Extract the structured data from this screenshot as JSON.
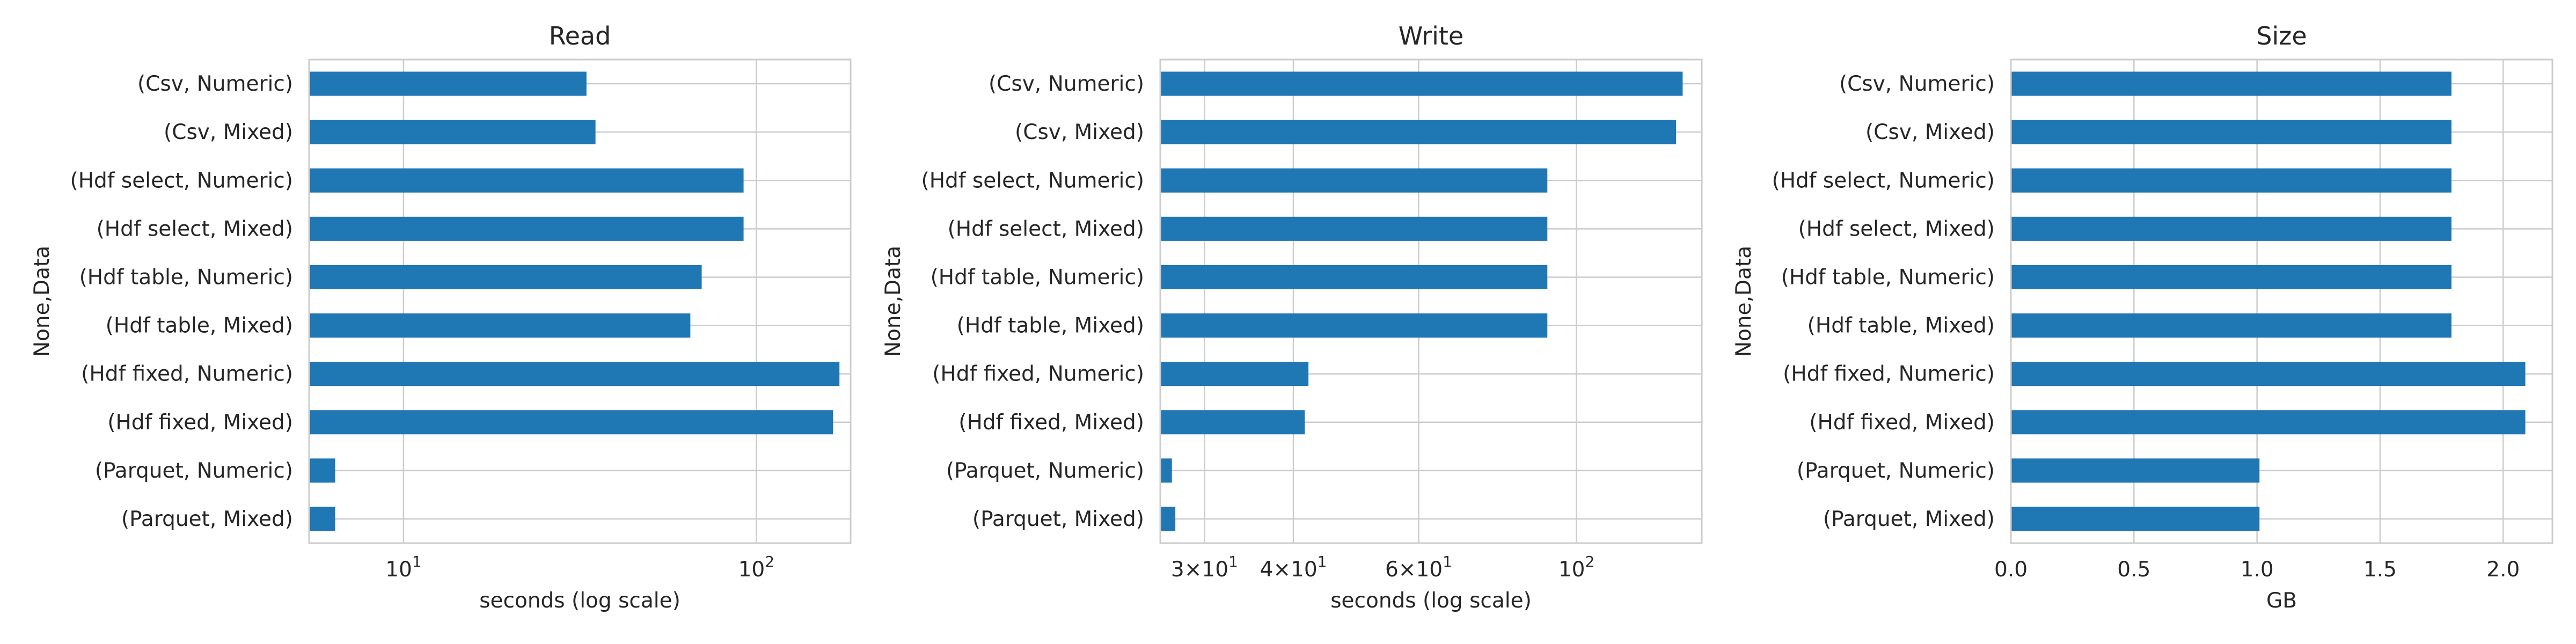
{
  "chart_data": [
    {
      "type": "bar",
      "orientation": "horizontal",
      "title": "Read",
      "xlabel": "seconds (log scale)",
      "ylabel": "None,Data",
      "xscale": "log",
      "xlim": [
        5.4,
        185
      ],
      "xticks": [
        10,
        100
      ],
      "grid": true,
      "categories": [
        "(Csv, Numeric)",
        "(Csv, Mixed)",
        "(Hdf select, Numeric)",
        "(Hdf select, Mixed)",
        "(Hdf table, Numeric)",
        "(Hdf table, Mixed)",
        "(Hdf fixed, Numeric)",
        "(Hdf fixed, Mixed)",
        "(Parquet, Numeric)",
        "(Parquet, Mixed)"
      ],
      "values": [
        33,
        35,
        92,
        92,
        70,
        65,
        172,
        165,
        6.4,
        6.4
      ],
      "color": "#1f77b4"
    },
    {
      "type": "bar",
      "orientation": "horizontal",
      "title": "Write",
      "xlabel": "seconds (log scale)",
      "ylabel": "None,Data",
      "xscale": "log",
      "xlim": [
        26,
        150
      ],
      "xticks": [
        30,
        40,
        60,
        100
      ],
      "xminor_ticks": [
        50,
        70,
        80,
        90
      ],
      "grid": true,
      "categories": [
        "(Csv, Numeric)",
        "(Csv, Mixed)",
        "(Hdf select, Numeric)",
        "(Hdf select, Mixed)",
        "(Hdf table, Numeric)",
        "(Hdf table, Mixed)",
        "(Hdf fixed, Numeric)",
        "(Hdf fixed, Mixed)",
        "(Parquet, Numeric)",
        "(Parquet, Mixed)"
      ],
      "values": [
        141,
        138,
        91,
        91,
        91,
        91,
        42,
        41.5,
        27,
        27.3
      ],
      "color": "#1f77b4"
    },
    {
      "type": "bar",
      "orientation": "horizontal",
      "title": "Size",
      "xlabel": "GB",
      "ylabel": "None,Data",
      "xscale": "linear",
      "xlim": [
        0,
        2.2
      ],
      "xticks": [
        0.0,
        0.5,
        1.0,
        1.5,
        2.0
      ],
      "grid": true,
      "categories": [
        "(Csv, Numeric)",
        "(Csv, Mixed)",
        "(Hdf select, Numeric)",
        "(Hdf select, Mixed)",
        "(Hdf table, Numeric)",
        "(Hdf table, Mixed)",
        "(Hdf fixed, Numeric)",
        "(Hdf fixed, Mixed)",
        "(Parquet, Numeric)",
        "(Parquet, Mixed)"
      ],
      "values": [
        1.79,
        1.79,
        1.79,
        1.79,
        1.79,
        1.79,
        2.09,
        2.09,
        1.01,
        1.01
      ],
      "color": "#1f77b4"
    }
  ]
}
